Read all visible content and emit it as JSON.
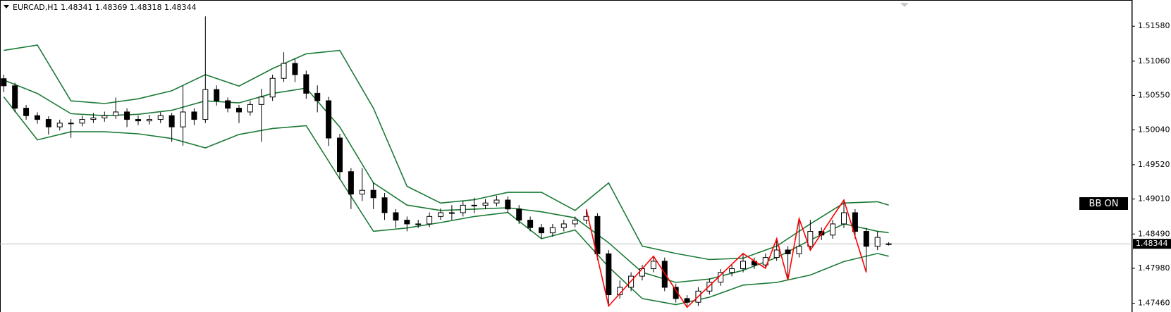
{
  "chart_data": {
    "type": "candlestick",
    "title": "EURCAD,H1  1.48341 1.48369 1.48318 1.48344",
    "open": [
      1.508,
      1.50694,
      1.50361,
      1.5025,
      1.50194,
      1.50083,
      1.50139,
      1.50139,
      1.50194,
      1.50216,
      1.5025,
      1.50305,
      1.50194,
      1.50172,
      1.50194,
      1.5025,
      1.50083,
      1.50305,
      1.50194,
      1.50638,
      1.50472,
      1.50361,
      1.50305,
      1.50416,
      1.50527,
      1.50805,
      1.51027,
      1.5086,
      1.50583,
      1.50472,
      1.49917,
      1.49417,
      1.49084,
      1.4914,
      1.49029,
      1.48807,
      1.48696,
      1.4864,
      1.4864,
      1.48751,
      1.48807,
      1.48807,
      1.48918,
      1.48918,
      1.48951,
      1.48995,
      1.48862,
      1.48696,
      1.48585,
      1.48507,
      1.48585,
      1.4864,
      1.48696,
      1.48751,
      1.48196,
      1.47586,
      1.47697,
      1.47863,
      1.47974,
      1.48085,
      1.47697,
      1.4753,
      1.47475,
      1.47641,
      1.47774,
      1.47919,
      1.47974,
      1.48085,
      1.4803,
      1.48141,
      1.48252,
      1.48196,
      1.48307,
      1.48529,
      1.48474,
      1.4864,
      1.48807,
      1.48529,
      1.48307,
      1.48341
    ],
    "high": [
      1.5086,
      1.5074,
      1.5041,
      1.503,
      1.5024,
      1.5019,
      1.502,
      1.5025,
      1.5029,
      1.5031,
      1.5052,
      1.5036,
      1.5025,
      1.5026,
      1.503,
      1.5029,
      1.50694,
      1.5036,
      1.51726,
      1.507,
      1.5052,
      1.5041,
      1.5047,
      1.5065,
      1.5086,
      1.51193,
      1.511,
      1.5092,
      1.507,
      1.5053,
      1.4998,
      1.4947,
      1.4947,
      1.4925,
      1.491,
      1.4886,
      1.4875,
      1.487,
      1.4881,
      1.4887,
      1.4892,
      1.4898,
      1.4903,
      1.4901,
      1.4906,
      1.4905,
      1.4892,
      1.4875,
      1.4864,
      1.4864,
      1.487,
      1.4875,
      1.4886,
      1.488,
      1.4825,
      1.478,
      1.4792,
      1.4803,
      1.4816,
      1.4814,
      1.4775,
      1.4758,
      1.477,
      1.4783,
      1.4797,
      1.4803,
      1.482,
      1.4814,
      1.482,
      1.4842,
      1.4831,
      1.4872,
      1.487,
      1.4859,
      1.487,
      1.48995,
      1.4886,
      1.4858,
      1.4853,
      1.48369
    ],
    "low": [
      1.506,
      1.503,
      1.5019,
      1.5013,
      1.4997,
      1.5003,
      1.4992,
      1.5009,
      1.5014,
      1.5016,
      1.502,
      1.5008,
      1.5011,
      1.5012,
      1.5014,
      1.4986,
      1.49803,
      1.5011,
      1.5014,
      1.504,
      1.503,
      1.5014,
      1.5025,
      1.49861,
      1.5047,
      1.5075,
      1.5075,
      1.505,
      1.503,
      1.498,
      1.493,
      1.4886,
      1.4898,
      1.4886,
      1.487,
      1.4858,
      1.4853,
      1.4858,
      1.4859,
      1.487,
      1.487,
      1.4875,
      1.488,
      1.4886,
      1.489,
      1.488,
      1.4864,
      1.4853,
      1.4842,
      1.4845,
      1.4853,
      1.4859,
      1.4864,
      1.481,
      1.47419,
      1.4753,
      1.4764,
      1.478,
      1.4792,
      1.4764,
      1.4747,
      1.474,
      1.4742,
      1.4759,
      1.4772,
      1.4786,
      1.4792,
      1.4797,
      1.4798,
      1.4809,
      1.47807,
      1.4814,
      1.4825,
      1.484,
      1.4842,
      1.4858,
      1.4842,
      1.47919,
      1.4825,
      1.48318
    ],
    "close": [
      1.50694,
      1.50361,
      1.5025,
      1.50194,
      1.50083,
      1.50139,
      1.50139,
      1.50194,
      1.50216,
      1.5025,
      1.50305,
      1.50194,
      1.50172,
      1.50194,
      1.5025,
      1.50083,
      1.50305,
      1.50194,
      1.50638,
      1.50472,
      1.50361,
      1.50305,
      1.50416,
      1.50527,
      1.50805,
      1.51027,
      1.5086,
      1.50583,
      1.50472,
      1.49917,
      1.49417,
      1.49084,
      1.4914,
      1.49029,
      1.48807,
      1.48696,
      1.4864,
      1.4864,
      1.48751,
      1.48807,
      1.48807,
      1.48918,
      1.48918,
      1.48951,
      1.48995,
      1.48862,
      1.48696,
      1.48585,
      1.48507,
      1.48585,
      1.4864,
      1.48696,
      1.48751,
      1.48196,
      1.47586,
      1.47697,
      1.47863,
      1.47974,
      1.48085,
      1.47697,
      1.4753,
      1.47475,
      1.47641,
      1.47774,
      1.47919,
      1.47974,
      1.48085,
      1.4803,
      1.48141,
      1.48252,
      1.48196,
      1.48307,
      1.48529,
      1.48474,
      1.4864,
      1.48807,
      1.48529,
      1.48307,
      1.4844,
      1.48344
    ],
    "bull_color": "#ffffff",
    "bear_color": "#000000",
    "wick_color": "#000000",
    "bands": {
      "color": "#1b7a36",
      "x": [
        0,
        3,
        6,
        9,
        12,
        15,
        18,
        21,
        24,
        27,
        30,
        33,
        36,
        39,
        42,
        45,
        48,
        51,
        54,
        57,
        60,
        63,
        66,
        69,
        72,
        75,
        78,
        79
      ],
      "upper": [
        1.5122,
        1.513,
        1.5047,
        1.5043,
        1.505,
        1.5062,
        1.5086,
        1.5069,
        1.5095,
        1.5117,
        1.5122,
        1.5036,
        1.492,
        1.4895,
        1.49,
        1.4911,
        1.4911,
        1.4884,
        1.4925,
        1.4831,
        1.482,
        1.4811,
        1.4813,
        1.4831,
        1.4864,
        1.4895,
        1.4897,
        1.4892
      ],
      "middle": [
        1.5078,
        1.5058,
        1.5028,
        1.5025,
        1.5027,
        1.5033,
        1.5047,
        1.5044,
        1.5058,
        1.5066,
        1.5008,
        1.4925,
        1.4892,
        1.4884,
        1.4886,
        1.4888,
        1.4882,
        1.4873,
        1.4836,
        1.4792,
        1.4777,
        1.4782,
        1.4795,
        1.4814,
        1.484,
        1.4864,
        1.4853,
        1.4851
      ],
      "lower": [
        1.5053,
        1.4989,
        1.5001,
        1.5001,
        1.4998,
        1.4991,
        1.4977,
        1.4997,
        1.5006,
        1.501,
        1.4931,
        1.4853,
        1.4858,
        1.4866,
        1.4875,
        1.4881,
        1.4842,
        1.4855,
        1.48,
        1.4753,
        1.4744,
        1.4755,
        1.4773,
        1.4777,
        1.4788,
        1.4808,
        1.482,
        1.4816
      ]
    },
    "zigzag": {
      "color": "#ff0000",
      "x": [
        52,
        54,
        58,
        61,
        66,
        68,
        69,
        70,
        71,
        72,
        75,
        77
      ],
      "values": [
        1.4886,
        1.47419,
        1.4816,
        1.474,
        1.482,
        1.4798,
        1.4842,
        1.47807,
        1.4872,
        1.4825,
        1.48995,
        1.47919
      ]
    },
    "ylim": [
      1.4733,
      1.5197
    ],
    "yticks": [
      {
        "value": 1.5158,
        "label": "1.51580"
      },
      {
        "value": 1.5106,
        "label": "1.51060"
      },
      {
        "value": 1.5055,
        "label": "1.50550"
      },
      {
        "value": 1.5004,
        "label": "1.50040"
      },
      {
        "value": 1.4952,
        "label": "1.49520"
      },
      {
        "value": 1.4901,
        "label": "1.49010"
      },
      {
        "value": 1.4849,
        "label": "1.48490"
      },
      {
        "value": 1.4798,
        "label": "1.47980"
      },
      {
        "value": 1.4746,
        "label": "1.47460"
      }
    ],
    "current_price": 1.48344,
    "current_line_color": "#c0c0c0",
    "indicator_label": "BB ON",
    "grid": false
  }
}
